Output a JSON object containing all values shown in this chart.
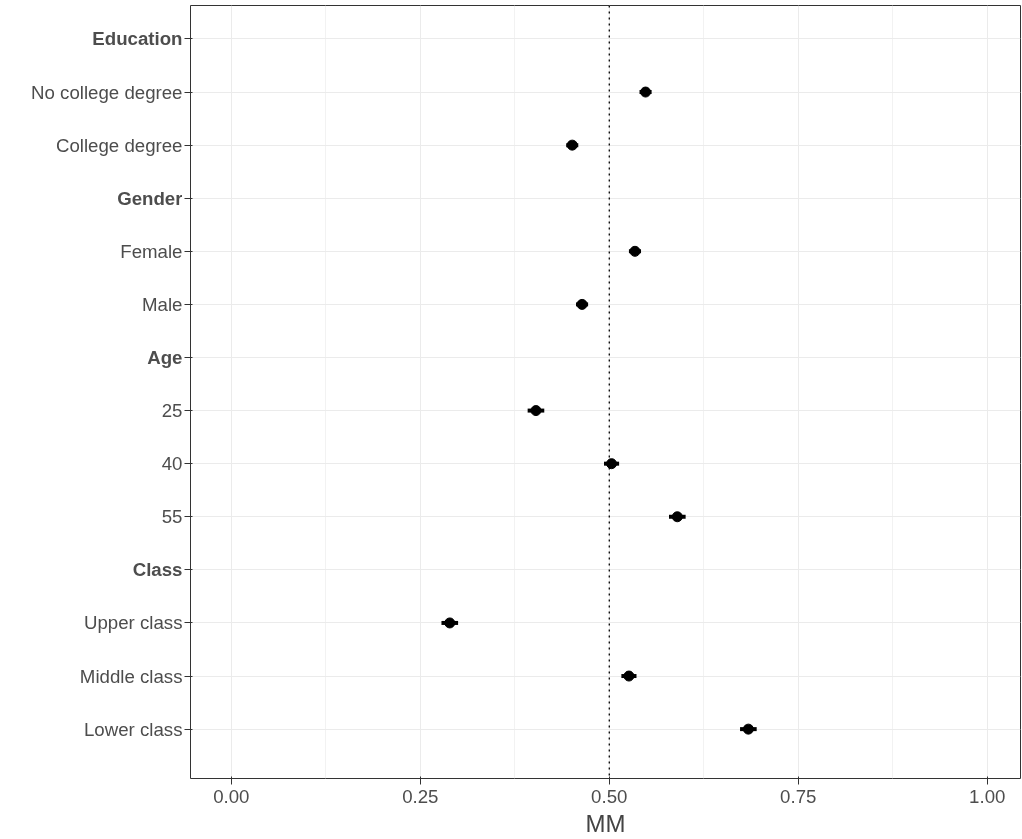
{
  "chart_data": {
    "type": "scatter",
    "orientation": "horizontal",
    "xlabel": "MM",
    "categories": [
      "Education",
      "No college degree",
      "College degree",
      "Gender",
      "Female",
      "Male",
      "Age",
      "25",
      "40",
      "55",
      "Class",
      "Upper class",
      "Middle class",
      "Lower class"
    ],
    "series": [
      {
        "color": "#000000",
        "values": [
          null,
          0.548,
          0.451,
          null,
          0.534,
          0.464,
          null,
          0.403,
          0.503,
          0.59,
          null,
          0.289,
          0.526,
          0.684
        ],
        "errors": [
          null,
          0.008,
          0.008,
          null,
          0.008,
          0.008,
          null,
          0.011,
          0.01,
          0.011,
          null,
          0.011,
          0.01,
          0.011
        ]
      }
    ],
    "xlim": [
      -0.054,
      1.044
    ],
    "xticks": [
      {
        "value": 0,
        "label": "0.00"
      },
      {
        "value": 0.25,
        "label": "0.25"
      },
      {
        "value": 0.5,
        "label": "0.50"
      },
      {
        "value": 0.75,
        "label": "0.75"
      },
      {
        "value": 1,
        "label": "1.00"
      }
    ],
    "ref_lines": [
      {
        "axis": "x",
        "value": 0.5,
        "color": "#000000",
        "line_style": "dotted"
      }
    ],
    "grid": true,
    "marker": "circle"
  }
}
